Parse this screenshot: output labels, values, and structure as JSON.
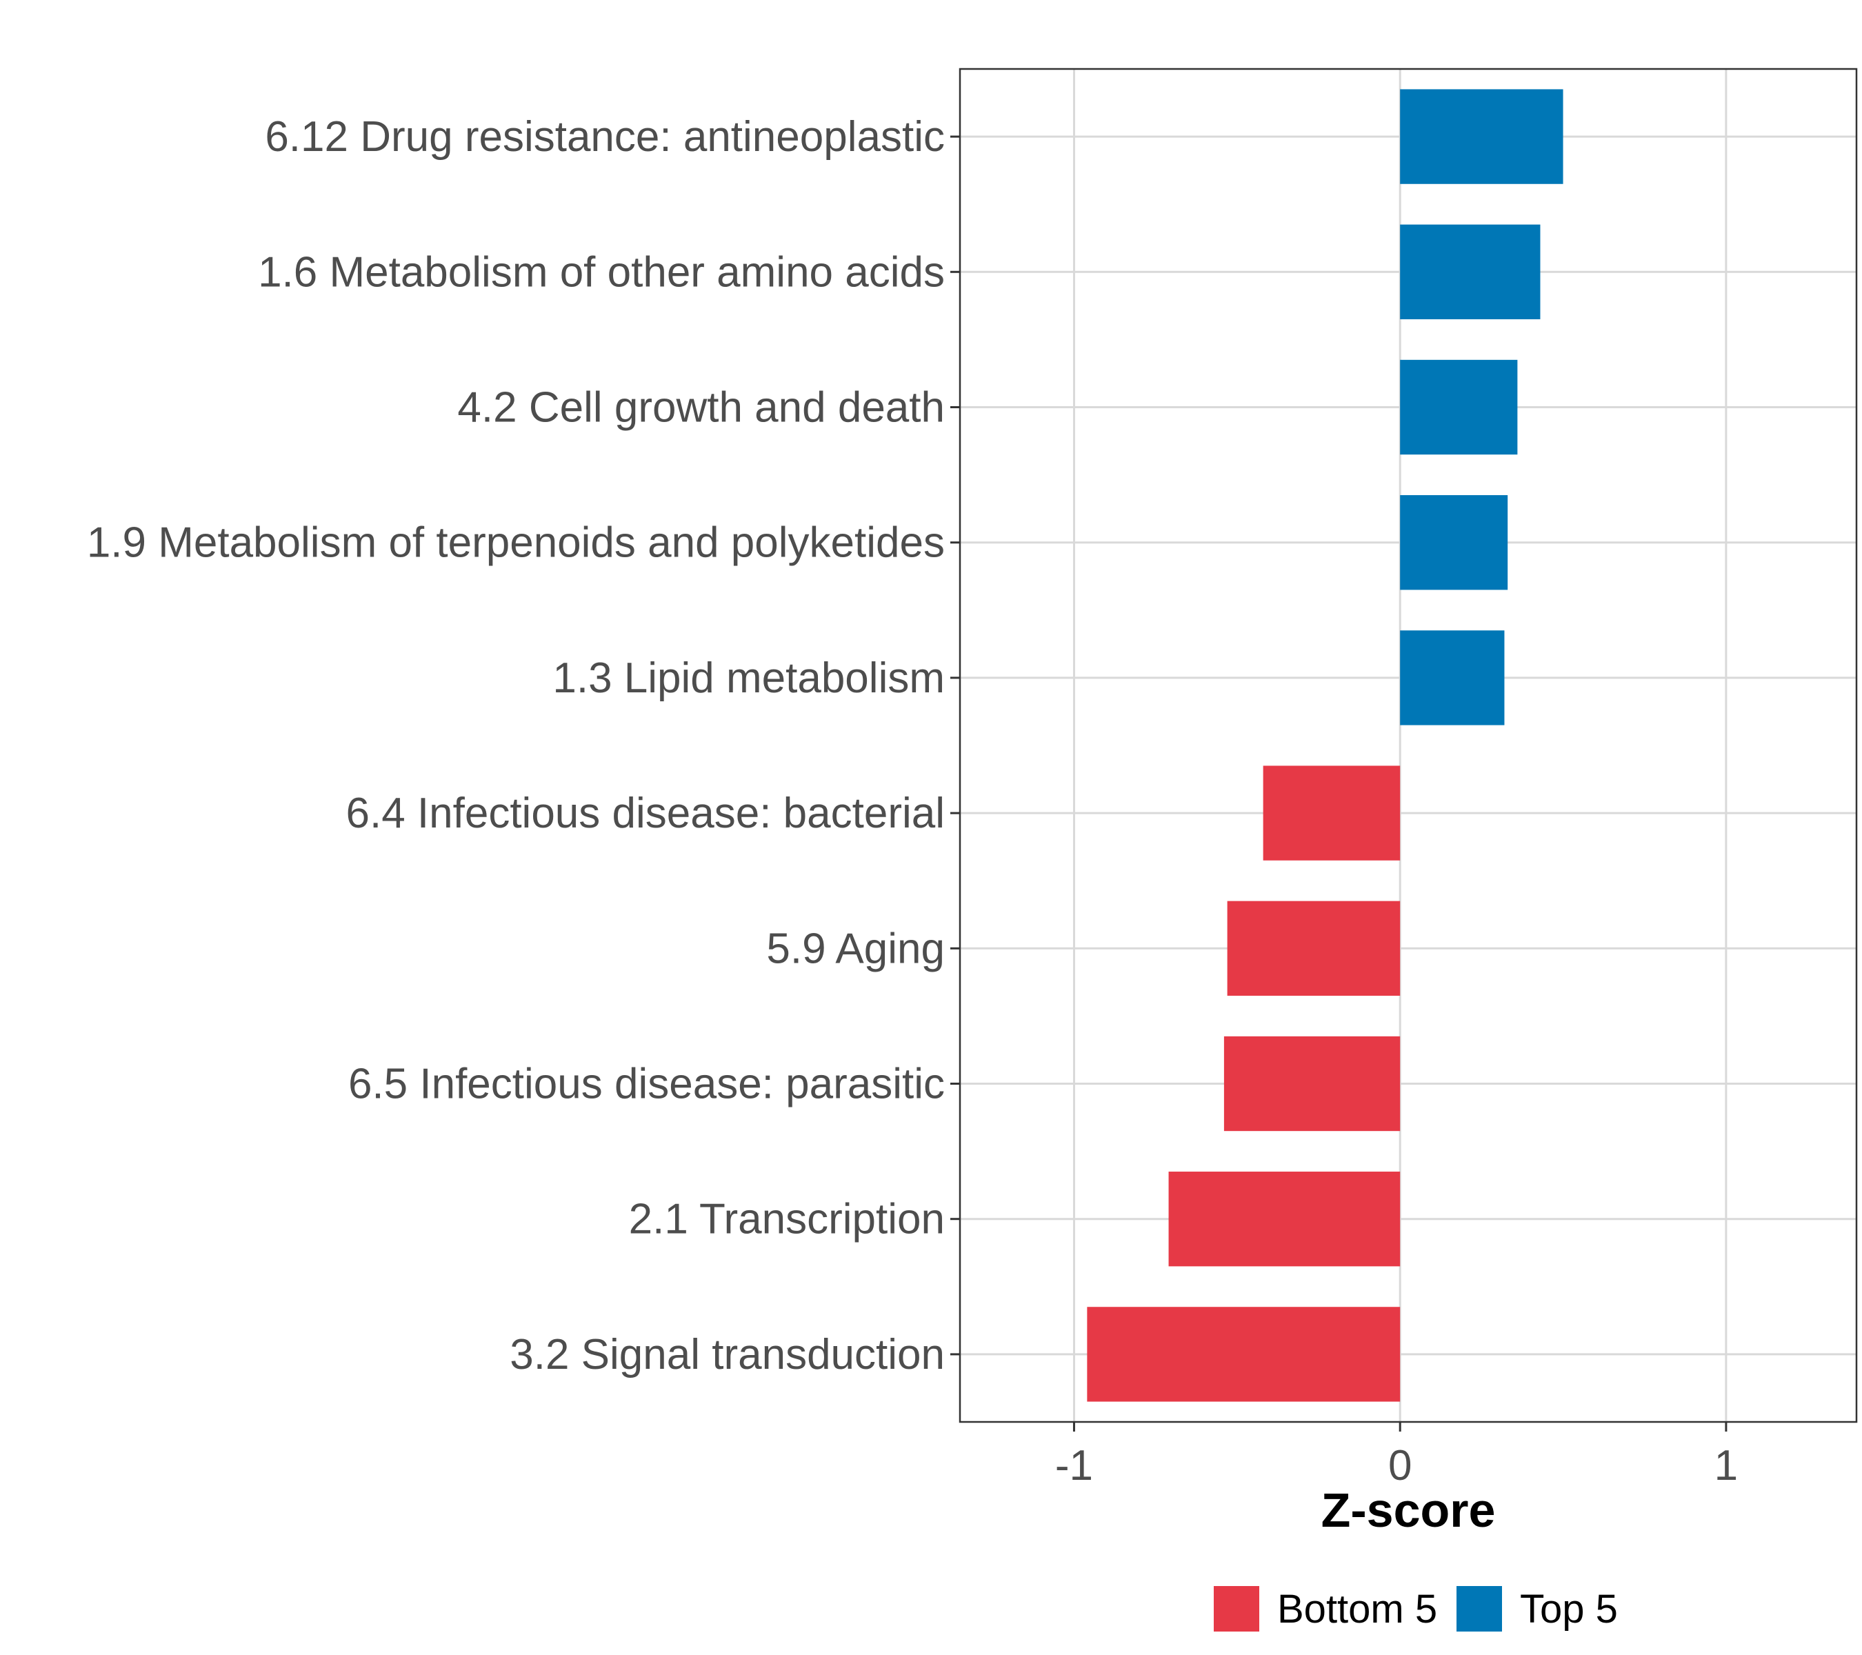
{
  "chart_data": {
    "type": "bar",
    "orientation": "horizontal",
    "title": "",
    "xlabel": "Z-score",
    "ylabel": "",
    "xlim": [
      -1.35,
      1.4
    ],
    "xticks": [
      -1,
      0,
      1
    ],
    "xtick_labels": [
      "-1",
      "0",
      "1"
    ],
    "grid": true,
    "legend_position": "bottom",
    "categories": [
      "6.12 Drug resistance: antineoplastic",
      "1.6 Metabolism of other amino acids",
      "4.2 Cell growth and death",
      "1.9 Metabolism of terpenoids and polyketides",
      "1.3 Lipid metabolism",
      "6.4 Infectious disease: bacterial",
      "5.9 Aging",
      "6.5 Infectious disease: parasitic",
      "2.1 Transcription",
      "3.2 Signal transduction"
    ],
    "values": [
      0.5,
      0.43,
      0.36,
      0.33,
      0.32,
      -0.42,
      -0.53,
      -0.54,
      -0.71,
      -0.96
    ],
    "groups": [
      "Top 5",
      "Top 5",
      "Top 5",
      "Top 5",
      "Top 5",
      "Bottom 5",
      "Bottom 5",
      "Bottom 5",
      "Bottom 5",
      "Bottom 5"
    ],
    "legend": [
      {
        "name": "Bottom 5",
        "color": "#e63946"
      },
      {
        "name": "Top 5",
        "color": "#0077b6"
      }
    ]
  }
}
